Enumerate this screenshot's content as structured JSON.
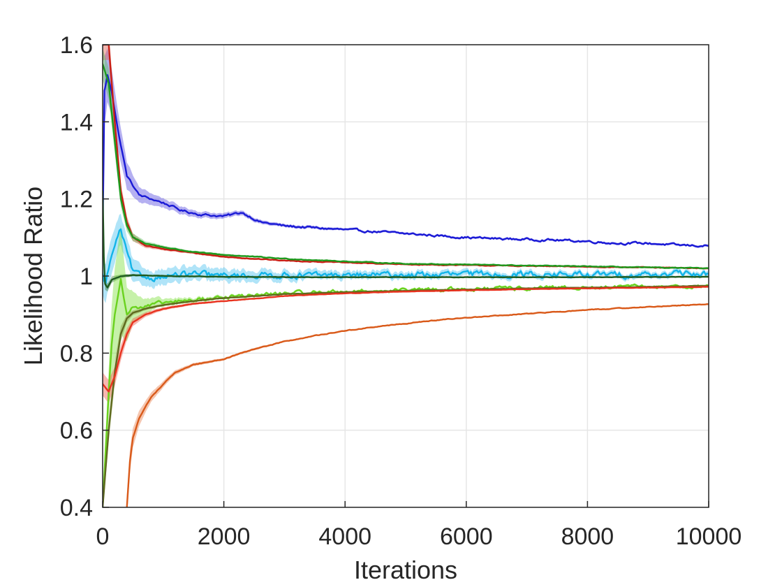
{
  "chart_data": {
    "type": "line",
    "title": "",
    "xlabel": "Iterations",
    "ylabel": "Likelihood Ratio",
    "xlim": [
      0,
      10000
    ],
    "ylim": [
      0.4,
      1.6
    ],
    "grid": true,
    "x_ticks": [
      0,
      2000,
      4000,
      6000,
      8000,
      10000
    ],
    "x_tick_labels": [
      "0",
      "2000",
      "4000",
      "6000",
      "8000",
      "10000"
    ],
    "y_ticks": [
      0.4,
      0.6,
      0.8,
      1.0,
      1.2,
      1.4,
      1.6
    ],
    "y_tick_labels": [
      "0.4",
      "0.6",
      "0.8",
      "1",
      "1.2",
      "1.4",
      "1.6"
    ],
    "series": [
      {
        "name": "blue",
        "color": "#1a1ad6",
        "band_color": "#5a4fe0",
        "noise": 0.006,
        "x": [
          0,
          30,
          80,
          150,
          250,
          400,
          600,
          800,
          1000,
          1300,
          1600,
          2000,
          2300,
          2600,
          3000,
          3500,
          4000,
          4500,
          5000,
          5500,
          6000,
          6500,
          7000,
          7500,
          8000,
          8500,
          9000,
          9500,
          10000
        ],
        "y": [
          1.1,
          1.48,
          1.52,
          1.48,
          1.38,
          1.26,
          1.21,
          1.2,
          1.19,
          1.17,
          1.16,
          1.155,
          1.165,
          1.14,
          1.13,
          1.125,
          1.12,
          1.115,
          1.11,
          1.105,
          1.1,
          1.097,
          1.095,
          1.093,
          1.09,
          1.085,
          1.085,
          1.08,
          1.078
        ],
        "band": [
          0.0,
          0.09,
          0.07,
          0.06,
          0.05,
          0.035,
          0.02,
          0.015,
          0.012,
          0.01,
          0.008,
          0.007,
          0.006,
          0.005,
          0.004,
          0.004,
          0.003,
          0.003,
          0.003,
          0.003,
          0.003,
          0.003,
          0.003,
          0.003,
          0.003,
          0.003,
          0.003,
          0.003,
          0.003
        ]
      },
      {
        "name": "red-upper",
        "color": "#c81e14",
        "band_color": "#e06050",
        "noise": 0.002,
        "x": [
          0,
          100,
          200,
          300,
          400,
          500,
          700,
          1000,
          1500,
          2000,
          3000,
          4000,
          5000,
          6000,
          7000,
          8000,
          9000,
          10000
        ],
        "y": [
          1.6,
          1.6,
          1.4,
          1.22,
          1.14,
          1.1,
          1.08,
          1.07,
          1.06,
          1.05,
          1.04,
          1.035,
          1.03,
          1.028,
          1.026,
          1.024,
          1.022,
          1.02
        ],
        "band": [
          0.04,
          0.04,
          0.03,
          0.02,
          0.015,
          0.01,
          0.006,
          0.004,
          0.003,
          0.003,
          0.002,
          0.002,
          0.002,
          0.002,
          0.002,
          0.002,
          0.002,
          0.002
        ]
      },
      {
        "name": "green-upper",
        "color": "#1e9a1e",
        "band_color": "#60c060",
        "noise": 0.002,
        "x": [
          0,
          100,
          200,
          300,
          400,
          500,
          700,
          1000,
          1500,
          2000,
          3000,
          4000,
          5000,
          6000,
          7000,
          8000,
          9000,
          10000
        ],
        "y": [
          1.55,
          1.5,
          1.35,
          1.2,
          1.13,
          1.1,
          1.085,
          1.075,
          1.062,
          1.055,
          1.045,
          1.038,
          1.032,
          1.03,
          1.027,
          1.025,
          1.022,
          1.02
        ],
        "band": [
          0.04,
          0.04,
          0.03,
          0.02,
          0.015,
          0.01,
          0.006,
          0.004,
          0.003,
          0.003,
          0.002,
          0.002,
          0.002,
          0.002,
          0.002,
          0.002,
          0.002,
          0.002
        ]
      },
      {
        "name": "cyan",
        "color": "#12b4e8",
        "band_color": "#4fc4f0",
        "noise": 0.016,
        "x": [
          0,
          50,
          100,
          200,
          300,
          400,
          500,
          600,
          800,
          1000,
          1500,
          2000,
          2500,
          3000,
          3500,
          4000,
          5000,
          6000,
          7000,
          8000,
          9000,
          10000
        ],
        "y": [
          1.0,
          0.98,
          1.02,
          1.08,
          1.12,
          1.06,
          1.01,
          1.0,
          0.995,
          1.0,
          1.005,
          1.0,
          1.002,
          1.003,
          1.001,
          1.002,
          1.003,
          1.004,
          1.005,
          1.003,
          1.004,
          1.005
        ],
        "band": [
          0.05,
          0.05,
          0.05,
          0.045,
          0.04,
          0.035,
          0.03,
          0.025,
          0.02,
          0.02,
          0.018,
          0.016,
          0.014,
          0.012,
          0.011,
          0.01,
          0.009,
          0.008,
          0.008,
          0.007,
          0.007,
          0.007
        ]
      },
      {
        "name": "dark-green",
        "color": "#1e5a1e",
        "band_color": "#3a7a3a",
        "noise": 0.001,
        "x": [
          0,
          20,
          40,
          80,
          150,
          300,
          500,
          800,
          1000,
          2000,
          3000,
          4000,
          6000,
          8000,
          10000
        ],
        "y": [
          1.22,
          1.05,
          0.98,
          0.97,
          0.99,
          1.0,
          1.002,
          1.001,
          1.0,
          0.998,
          0.997,
          0.997,
          0.997,
          0.997,
          0.998
        ],
        "band": [
          0.02,
          0.02,
          0.015,
          0.01,
          0.008,
          0.005,
          0.003,
          0.002,
          0.002,
          0.002,
          0.002,
          0.002,
          0.002,
          0.002,
          0.002
        ]
      },
      {
        "name": "green-lower",
        "color": "#6ad21e",
        "band_color": "#80e040",
        "noise": 0.01,
        "x": [
          0,
          50,
          100,
          150,
          200,
          300,
          400,
          500,
          700,
          1000,
          1500,
          2000,
          3000,
          4000,
          5000,
          6000,
          7000,
          8000,
          9000,
          10000
        ],
        "y": [
          0.4,
          0.55,
          0.7,
          0.82,
          0.9,
          1.0,
          0.9,
          0.92,
          0.92,
          0.93,
          0.938,
          0.945,
          0.955,
          0.96,
          0.963,
          0.966,
          0.968,
          0.97,
          0.972,
          0.974
        ],
        "band": [
          0.02,
          0.04,
          0.06,
          0.1,
          0.12,
          0.14,
          0.07,
          0.04,
          0.02,
          0.01,
          0.006,
          0.004,
          0.003,
          0.003,
          0.003,
          0.003,
          0.003,
          0.003,
          0.003,
          0.003
        ]
      },
      {
        "name": "olive",
        "color": "#5e6a1e",
        "band_color": "#8a9a40",
        "noise": 0.001,
        "x": [
          0,
          100,
          200,
          300,
          400,
          500,
          700,
          1000,
          1500,
          2000,
          3000,
          4000,
          5000,
          6000,
          7000,
          8000,
          9000,
          10000
        ],
        "y": [
          0.4,
          0.6,
          0.75,
          0.85,
          0.89,
          0.905,
          0.915,
          0.925,
          0.935,
          0.943,
          0.953,
          0.958,
          0.962,
          0.965,
          0.968,
          0.97,
          0.972,
          0.975
        ],
        "band": [
          0.02,
          0.03,
          0.03,
          0.02,
          0.01,
          0.006,
          0.004,
          0.003,
          0.002,
          0.002,
          0.002,
          0.002,
          0.002,
          0.002,
          0.002,
          0.002,
          0.002,
          0.002
        ]
      },
      {
        "name": "red-lower",
        "color": "#e8321e",
        "band_color": "#f06050",
        "noise": 0.001,
        "x": [
          0,
          100,
          200,
          300,
          400,
          500,
          700,
          1000,
          1500,
          2000,
          3000,
          4000,
          5000,
          6000,
          7000,
          8000,
          9000,
          10000
        ],
        "y": [
          0.72,
          0.7,
          0.74,
          0.8,
          0.85,
          0.88,
          0.9,
          0.915,
          0.928,
          0.935,
          0.948,
          0.955,
          0.96,
          0.963,
          0.966,
          0.968,
          0.97,
          0.972
        ],
        "band": [
          0.03,
          0.03,
          0.025,
          0.02,
          0.015,
          0.01,
          0.006,
          0.004,
          0.003,
          0.002,
          0.002,
          0.002,
          0.002,
          0.002,
          0.002,
          0.002,
          0.002,
          0.002
        ]
      },
      {
        "name": "orange",
        "color": "#d95a1a",
        "band_color": "#e98050",
        "noise": 0.002,
        "x": [
          400,
          450,
          500,
          600,
          700,
          800,
          1000,
          1200,
          1500,
          2000,
          2500,
          3000,
          3500,
          4000,
          4500,
          5000,
          5500,
          6000,
          7000,
          8000,
          9000,
          10000
        ],
        "y": [
          0.4,
          0.52,
          0.58,
          0.63,
          0.66,
          0.685,
          0.72,
          0.75,
          0.77,
          0.785,
          0.81,
          0.83,
          0.845,
          0.858,
          0.868,
          0.877,
          0.885,
          0.892,
          0.902,
          0.912,
          0.92,
          0.927
        ],
        "band": [
          0.03,
          0.03,
          0.025,
          0.02,
          0.015,
          0.012,
          0.008,
          0.006,
          0.004,
          0.003,
          0.003,
          0.002,
          0.002,
          0.002,
          0.002,
          0.002,
          0.002,
          0.002,
          0.002,
          0.002,
          0.002,
          0.002
        ]
      }
    ]
  }
}
